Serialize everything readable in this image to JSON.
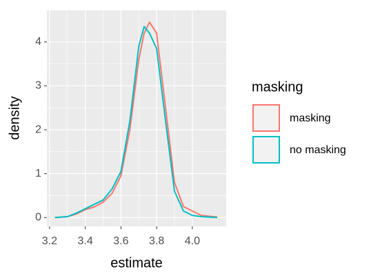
{
  "chart_data": {
    "type": "line",
    "x_label": "estimate",
    "y_label": "density",
    "legend_title": "masking",
    "legend": "right",
    "x": [
      3.23,
      3.3,
      3.35,
      3.4,
      3.45,
      3.5,
      3.55,
      3.6,
      3.65,
      3.7,
      3.73,
      3.76,
      3.8,
      3.85,
      3.9,
      3.95,
      4.0,
      4.05,
      4.14
    ],
    "series": [
      {
        "name": "masking",
        "color": "#F8766D",
        "values": [
          0,
          0.02,
          0.08,
          0.18,
          0.24,
          0.35,
          0.55,
          0.95,
          2.0,
          3.6,
          4.2,
          4.45,
          4.2,
          2.5,
          0.8,
          0.25,
          0.15,
          0.05,
          0.01
        ]
      },
      {
        "name": "no masking",
        "color": "#00BFC4",
        "values": [
          0,
          0.02,
          0.1,
          0.2,
          0.3,
          0.4,
          0.65,
          1.05,
          2.2,
          3.9,
          4.35,
          4.2,
          3.85,
          2.2,
          0.6,
          0.15,
          0.05,
          0.02,
          0
        ]
      }
    ],
    "xlim": [
      3.185,
      4.19
    ],
    "ylim": [
      -0.2,
      4.72
    ],
    "xticks": [
      3.2,
      3.4,
      3.6,
      3.8,
      {
        "value": 4,
        "label": "4.0"
      }
    ],
    "yticks": [
      0,
      1,
      2,
      3,
      4
    ],
    "grid": true,
    "minor_grid": true
  }
}
